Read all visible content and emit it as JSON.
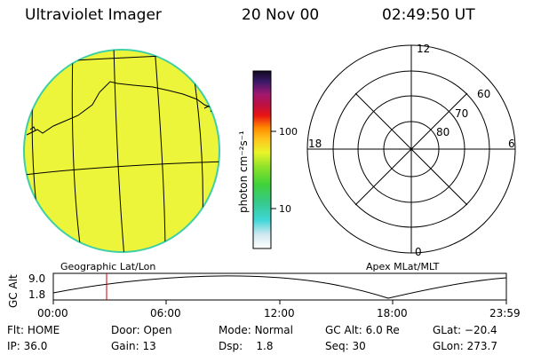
{
  "header": {
    "instrument": "Ultraviolet Imager",
    "date": "20 Nov 00",
    "time": "02:49:50 UT"
  },
  "colorbar": {
    "unit_label": "photon cm⁻²s⁻¹",
    "ticks": [
      "100",
      "10"
    ]
  },
  "polar_plot": {
    "mlt_labels": {
      "top": "12",
      "left": "18",
      "right": "6",
      "bottom": "0"
    },
    "mlat_labels": [
      "60",
      "70",
      "80"
    ]
  },
  "panel_labels": {
    "left": "Geographic Lat/Lon",
    "right": "Apex MLat/MLT"
  },
  "timeline": {
    "ylabel": "GC Alt",
    "ymax": "9.0",
    "ymin": "1.8",
    "xticks": [
      "00:00",
      "06:00",
      "12:00",
      "18:00",
      "23:59"
    ],
    "marker_time": "02:49:50"
  },
  "status": {
    "row1": [
      {
        "label": "Flt:",
        "value": "HOME"
      },
      {
        "label": "Door:",
        "value": "Open"
      },
      {
        "label": "Mode:",
        "value": "Normal"
      },
      {
        "label": "GC Alt:",
        "value": "6.0 Re"
      },
      {
        "label": "GLat:",
        "value": "−20.4"
      }
    ],
    "row2": [
      {
        "label": "IP:",
        "value": "36.0"
      },
      {
        "label": "Gain:",
        "value": "13"
      },
      {
        "label": "Dsp:",
        "value": "1.8"
      },
      {
        "label": "Seq:",
        "value": "30"
      },
      {
        "label": "GLon:",
        "value": "273.7"
      }
    ]
  },
  "colors": {
    "disk_fill": "#ecf53a",
    "disk_edge": "#3fcfa6",
    "marker": "#cc0000"
  }
}
